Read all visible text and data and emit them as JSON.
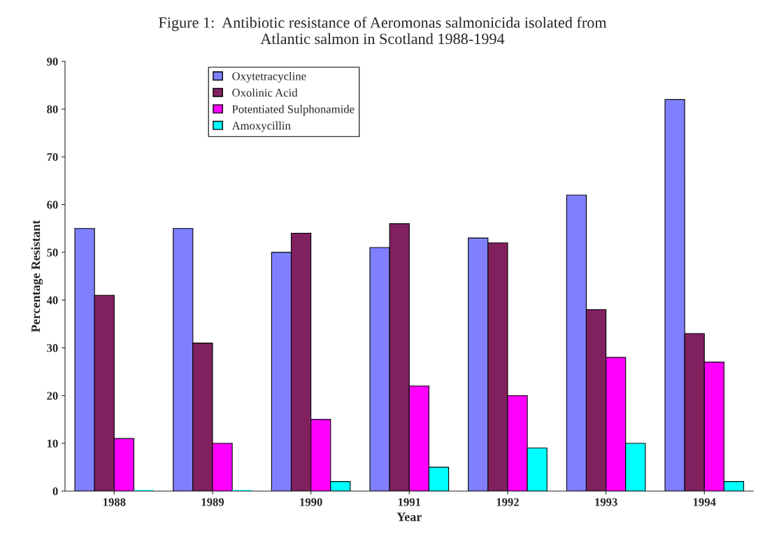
{
  "chart_data": {
    "type": "bar",
    "title": "Figure 1:  Antibiotic resistance of Aeromonas salmonicida isolated from\nAtlantic salmon in Scotland 1988-1994",
    "xlabel": "Year",
    "ylabel": "Percentage Resistant",
    "categories": [
      "1988",
      "1989",
      "1990",
      "1991",
      "1992",
      "1993",
      "1994"
    ],
    "series": [
      {
        "name": "Oxytetracycline",
        "color": "#8080ff",
        "values": [
          55,
          55,
          50,
          51,
          53,
          62,
          82
        ]
      },
      {
        "name": "Oxolinic Acid",
        "color": "#80205f",
        "values": [
          41,
          31,
          54,
          56,
          52,
          38,
          33
        ]
      },
      {
        "name": "Potentiated Sulphonamide",
        "color": "#ff00ff",
        "values": [
          11,
          10,
          15,
          22,
          20,
          28,
          27
        ]
      },
      {
        "name": "Amoxycillin",
        "color": "#00ffff",
        "values": [
          0,
          0,
          2,
          5,
          9,
          10,
          2
        ]
      }
    ],
    "ylim": [
      0,
      90
    ],
    "yticks": [
      0,
      10,
      20,
      30,
      40,
      50,
      60,
      70,
      80,
      90
    ],
    "grid": false,
    "legend": "top left"
  }
}
